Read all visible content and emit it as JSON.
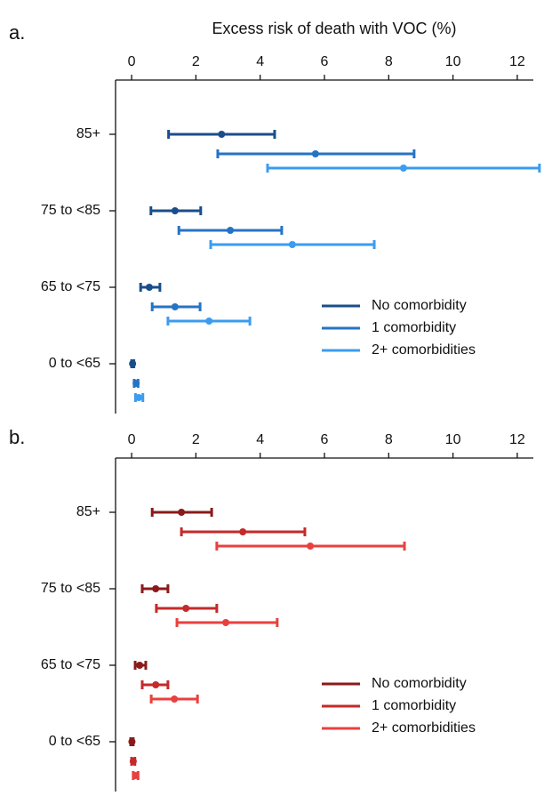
{
  "chart_data": [
    {
      "type": "forest",
      "panel_label": "a.",
      "title": "Excess risk of death with VOC (%)",
      "categories": [
        "85+",
        "75 to <85",
        "65 to <75",
        "0 to <65"
      ],
      "xlim": [
        -0.5,
        12.5
      ],
      "xticks": [
        0,
        2,
        4,
        6,
        8,
        10,
        12
      ],
      "legend": "bottom-right",
      "series": [
        {
          "name": "No comorbidity",
          "color": "#1a4e8a",
          "values": [
            2.8,
            1.35,
            0.55,
            0.03
          ],
          "lower": [
            1.15,
            0.6,
            0.28,
            0.0
          ],
          "upper": [
            4.45,
            2.15,
            0.88,
            0.07
          ]
        },
        {
          "name": "1 comorbidity",
          "color": "#2673c4",
          "values": [
            5.72,
            3.07,
            1.35,
            0.14
          ],
          "lower": [
            2.68,
            1.47,
            0.64,
            0.08
          ],
          "upper": [
            8.79,
            4.67,
            2.13,
            0.2
          ]
        },
        {
          "name": "2+ comorbidities",
          "color": "#3b9cf0",
          "values": [
            8.46,
            5.0,
            2.41,
            0.22
          ],
          "lower": [
            4.23,
            2.46,
            1.13,
            0.12
          ],
          "upper": [
            12.69,
            7.55,
            3.68,
            0.35
          ]
        }
      ]
    },
    {
      "type": "forest",
      "panel_label": "b.",
      "categories": [
        "85+",
        "75 to <85",
        "65 to <75",
        "0 to <65"
      ],
      "xlim": [
        -0.5,
        12.5
      ],
      "xticks": [
        0,
        2,
        4,
        6,
        8,
        10,
        12
      ],
      "legend": "bottom-right",
      "series": [
        {
          "name": "No comorbidity",
          "color": "#8b1a1a",
          "values": [
            1.55,
            0.75,
            0.25,
            0.01
          ],
          "lower": [
            0.64,
            0.33,
            0.11,
            -0.03
          ],
          "upper": [
            2.49,
            1.13,
            0.44,
            0.05
          ]
        },
        {
          "name": "1 comorbidity",
          "color": "#c42a2a",
          "values": [
            3.46,
            1.69,
            0.75,
            0.05
          ],
          "lower": [
            1.55,
            0.77,
            0.33,
            0.0
          ],
          "upper": [
            5.39,
            2.65,
            1.13,
            0.1
          ]
        },
        {
          "name": "2+ comorbidities",
          "color": "#e8413f",
          "values": [
            5.56,
            2.93,
            1.33,
            0.12
          ],
          "lower": [
            2.65,
            1.41,
            0.61,
            0.05
          ],
          "upper": [
            8.49,
            4.53,
            2.05,
            0.2
          ]
        }
      ]
    }
  ]
}
